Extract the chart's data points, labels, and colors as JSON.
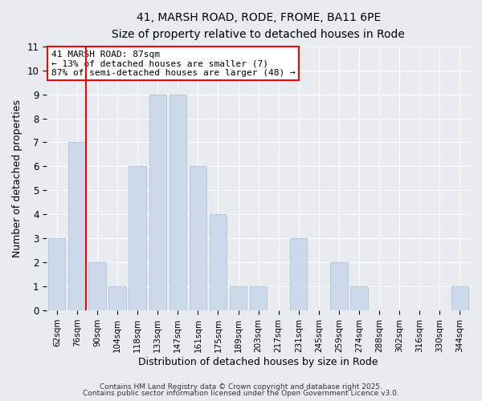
{
  "title": "41, MARSH ROAD, RODE, FROME, BA11 6PE",
  "subtitle": "Size of property relative to detached houses in Rode",
  "xlabel": "Distribution of detached houses by size in Rode",
  "ylabel": "Number of detached properties",
  "bar_color": "#ccd9e8",
  "bar_edgecolor": "#b0c4d8",
  "categories": [
    "62sqm",
    "76sqm",
    "90sqm",
    "104sqm",
    "118sqm",
    "133sqm",
    "147sqm",
    "161sqm",
    "175sqm",
    "189sqm",
    "203sqm",
    "217sqm",
    "231sqm",
    "245sqm",
    "259sqm",
    "274sqm",
    "288sqm",
    "302sqm",
    "316sqm",
    "330sqm",
    "344sqm"
  ],
  "values": [
    3,
    7,
    2,
    1,
    6,
    9,
    9,
    6,
    4,
    1,
    1,
    0,
    3,
    0,
    2,
    1,
    0,
    0,
    0,
    0,
    1
  ],
  "ylim": [
    0,
    11
  ],
  "yticks": [
    0,
    1,
    2,
    3,
    4,
    5,
    6,
    7,
    8,
    9,
    10,
    11
  ],
  "red_line_index": 1,
  "annotation_text": "41 MARSH ROAD: 87sqm\n← 13% of detached houses are smaller (7)\n87% of semi-detached houses are larger (48) →",
  "footer1": "Contains HM Land Registry data © Crown copyright and database right 2025.",
  "footer2": "Contains public sector information licensed under the Open Government Licence v3.0.",
  "background_color": "#e8ecf0",
  "plot_background": "#e8ecf0",
  "grid_color": "#ffffff"
}
